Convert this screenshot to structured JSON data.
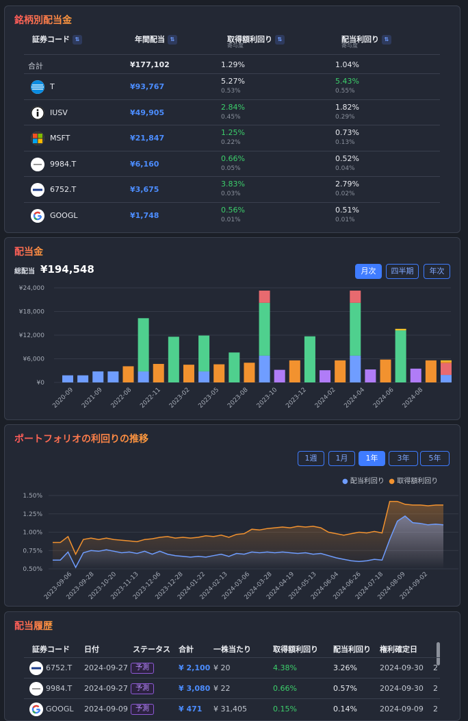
{
  "holdings": {
    "title": "銘柄別配当金",
    "headers": {
      "code": "証券コード",
      "annual": "年間配当",
      "acq": "取得額利回り",
      "acq_sub": "寄与度",
      "div": "配当利回り",
      "div_sub": "寄与度"
    },
    "total": {
      "label": "合計",
      "annual": "¥177,102",
      "acq": "1.29%",
      "div": "1.04%"
    },
    "rows": [
      {
        "code": "T",
        "annual": "¥93,767",
        "acq": "5.27%",
        "acq_sub": "0.53%",
        "div": "5.43%",
        "div_sub": "0.55%"
      },
      {
        "code": "IUSV",
        "annual": "¥49,905",
        "acq": "2.84%",
        "acq_sub": "0.45%",
        "div": "1.82%",
        "div_sub": "0.29%"
      },
      {
        "code": "MSFT",
        "annual": "¥21,847",
        "acq": "1.25%",
        "acq_sub": "0.22%",
        "div": "0.73%",
        "div_sub": "0.13%"
      },
      {
        "code": "9984.T",
        "annual": "¥6,160",
        "acq": "0.66%",
        "acq_sub": "0.05%",
        "div": "0.52%",
        "div_sub": "0.04%"
      },
      {
        "code": "6752.T",
        "annual": "¥3,675",
        "acq": "3.83%",
        "acq_sub": "0.03%",
        "div": "2.79%",
        "div_sub": "0.02%"
      },
      {
        "code": "GOOGL",
        "annual": "¥1,748",
        "acq": "0.56%",
        "acq_sub": "0.01%",
        "div": "0.51%",
        "div_sub": "0.01%"
      }
    ]
  },
  "dividends": {
    "title": "配当金",
    "total_label": "総配当",
    "total": "¥194,548",
    "buttons": [
      "月次",
      "四半期",
      "年次"
    ],
    "active": "月次"
  },
  "chart_data": [
    {
      "type": "bar",
      "stacked": true,
      "yticks": [
        "¥24,000",
        "¥18,000",
        "¥12,000",
        "¥6,000",
        "¥0"
      ],
      "ylim": [
        0,
        24000
      ],
      "xtick_labels": [
        "2020-09",
        "2021-09",
        "2022-08",
        "2022-11",
        "2023-02",
        "2023-05",
        "2023-08",
        "2023-10",
        "2023-12",
        "2024-02",
        "2024-04",
        "2024-06",
        "2024-08"
      ],
      "bars": [
        {
          "segs": [
            [
              1800,
              "#6f9dff"
            ]
          ]
        },
        {
          "segs": [
            [
              1800,
              "#6f9dff"
            ]
          ]
        },
        {
          "segs": [
            [
              2800,
              "#6f9dff"
            ]
          ]
        },
        {
          "segs": [
            [
              2800,
              "#6f9dff"
            ]
          ]
        },
        {
          "segs": [
            [
              4100,
              "#f2922f"
            ]
          ]
        },
        {
          "segs": [
            [
              2800,
              "#6f9dff"
            ],
            [
              13500,
              "#4fd08e"
            ]
          ]
        },
        {
          "segs": [
            [
              4700,
              "#f2922f"
            ]
          ]
        },
        {
          "segs": [
            [
              11600,
              "#4fd08e"
            ]
          ]
        },
        {
          "segs": [
            [
              4500,
              "#f2922f"
            ]
          ]
        },
        {
          "segs": [
            [
              2800,
              "#6f9dff"
            ],
            [
              9100,
              "#4fd08e"
            ]
          ]
        },
        {
          "segs": [
            [
              4600,
              "#f2922f"
            ]
          ]
        },
        {
          "segs": [
            [
              7600,
              "#4fd08e"
            ]
          ]
        },
        {
          "segs": [
            [
              5000,
              "#f2922f"
            ]
          ]
        },
        {
          "segs": [
            [
              6800,
              "#6f9dff"
            ],
            [
              13400,
              "#4fd08e"
            ],
            [
              3100,
              "#e86a6f"
            ]
          ]
        },
        {
          "segs": [
            [
              3200,
              "#b07cf7"
            ]
          ]
        },
        {
          "segs": [
            [
              5600,
              "#f2922f"
            ]
          ]
        },
        {
          "segs": [
            [
              11700,
              "#4fd08e"
            ]
          ]
        },
        {
          "segs": [
            [
              3100,
              "#b07cf7"
            ]
          ]
        },
        {
          "segs": [
            [
              5600,
              "#f2922f"
            ]
          ]
        },
        {
          "segs": [
            [
              6800,
              "#6f9dff"
            ],
            [
              13400,
              "#4fd08e"
            ],
            [
              3100,
              "#e86a6f"
            ]
          ]
        },
        {
          "segs": [
            [
              3300,
              "#b07cf7"
            ]
          ]
        },
        {
          "segs": [
            [
              5800,
              "#f2922f"
            ]
          ]
        },
        {
          "segs": [
            [
              13200,
              "#4fd08e"
            ],
            [
              400,
              "#f2c62f"
            ]
          ]
        },
        {
          "segs": [
            [
              3500,
              "#b07cf7"
            ]
          ]
        },
        {
          "segs": [
            [
              5600,
              "#f2922f"
            ]
          ]
        },
        {
          "segs": [
            [
              1900,
              "#6f9dff"
            ],
            [
              3000,
              "#e86a6f"
            ],
            [
              400,
              "#f2922f"
            ],
            [
              300,
              "#f2c62f"
            ]
          ]
        }
      ]
    },
    {
      "type": "line",
      "title": "ポートフォリオの利回りの推移",
      "yticks": [
        "1.50%",
        "1.25%",
        "1.00%",
        "0.75%",
        "0.50%"
      ],
      "ylim": [
        0.5,
        1.5
      ],
      "xtick_labels": [
        "2023-09-06",
        "2023-09-28",
        "2023-10-20",
        "2023-11-13",
        "2023-12-06",
        "2023-12-28",
        "2024-01-22",
        "2024-02-13",
        "2024-03-06",
        "2024-03-28",
        "2024-04-19",
        "2024-05-13",
        "2024-06-04",
        "2024-06-26",
        "2024-07-18",
        "2024-08-09",
        "2024-09-02"
      ],
      "series": [
        {
          "name": "配当利回り",
          "color": "#6f9dff",
          "values": [
            0.62,
            0.62,
            0.73,
            0.52,
            0.72,
            0.75,
            0.74,
            0.76,
            0.74,
            0.72,
            0.73,
            0.71,
            0.74,
            0.7,
            0.74,
            0.7,
            0.68,
            0.67,
            0.66,
            0.67,
            0.66,
            0.68,
            0.7,
            0.67,
            0.71,
            0.7,
            0.73,
            0.72,
            0.73,
            0.72,
            0.73,
            0.72,
            0.71,
            0.72,
            0.7,
            0.71,
            0.68,
            0.65,
            0.63,
            0.61,
            0.6,
            0.61,
            0.63,
            0.62,
            0.9,
            1.15,
            1.22,
            1.13,
            1.12,
            1.1,
            1.11,
            1.1
          ]
        },
        {
          "name": "取得額利回り",
          "color": "#f2922f",
          "values": [
            0.86,
            0.86,
            0.94,
            0.7,
            0.9,
            0.92,
            0.9,
            0.92,
            0.9,
            0.89,
            0.88,
            0.87,
            0.9,
            0.91,
            0.93,
            0.94,
            0.92,
            0.93,
            0.92,
            0.93,
            0.95,
            0.94,
            0.96,
            0.93,
            0.97,
            0.98,
            1.04,
            1.03,
            1.05,
            1.06,
            1.07,
            1.06,
            1.08,
            1.07,
            1.08,
            1.06,
            1.0,
            0.98,
            0.96,
            0.98,
            1.0,
            0.99,
            1.01,
            0.99,
            1.42,
            1.42,
            1.38,
            1.37,
            1.37,
            1.36,
            1.37,
            1.37
          ]
        }
      ]
    }
  ],
  "yield": {
    "title": "ポートフォリオの利回りの推移",
    "buttons": [
      "1週",
      "1月",
      "1年",
      "3年",
      "5年"
    ],
    "active": "1年",
    "legend": [
      "配当利回り",
      "取得額利回り"
    ]
  },
  "history": {
    "title": "配当履歴",
    "headers": [
      "証券コード",
      "日付",
      "ステータス",
      "合計",
      "一株当たり",
      "取得額利回り",
      "配当利回り",
      "権利確定日"
    ],
    "rows": [
      {
        "code": "6752.T",
        "date": "2024-09-27",
        "status": "予測",
        "total": "¥ 2,100",
        "per": "¥ 20",
        "acq": "4.38%",
        "div": "3.26%",
        "rec": "2024-09-30",
        "more": "2"
      },
      {
        "code": "9984.T",
        "date": "2024-09-27",
        "status": "予測",
        "total": "¥ 3,080",
        "per": "¥ 22",
        "acq": "0.66%",
        "div": "0.57%",
        "rec": "2024-09-30",
        "more": "2"
      },
      {
        "code": "GOOGL",
        "date": "2024-09-09",
        "status": "予測",
        "total": "¥ 471",
        "per": "¥ 31,405",
        "acq": "0.15%",
        "div": "0.14%",
        "rec": "2024-09-09",
        "more": "2"
      }
    ]
  }
}
